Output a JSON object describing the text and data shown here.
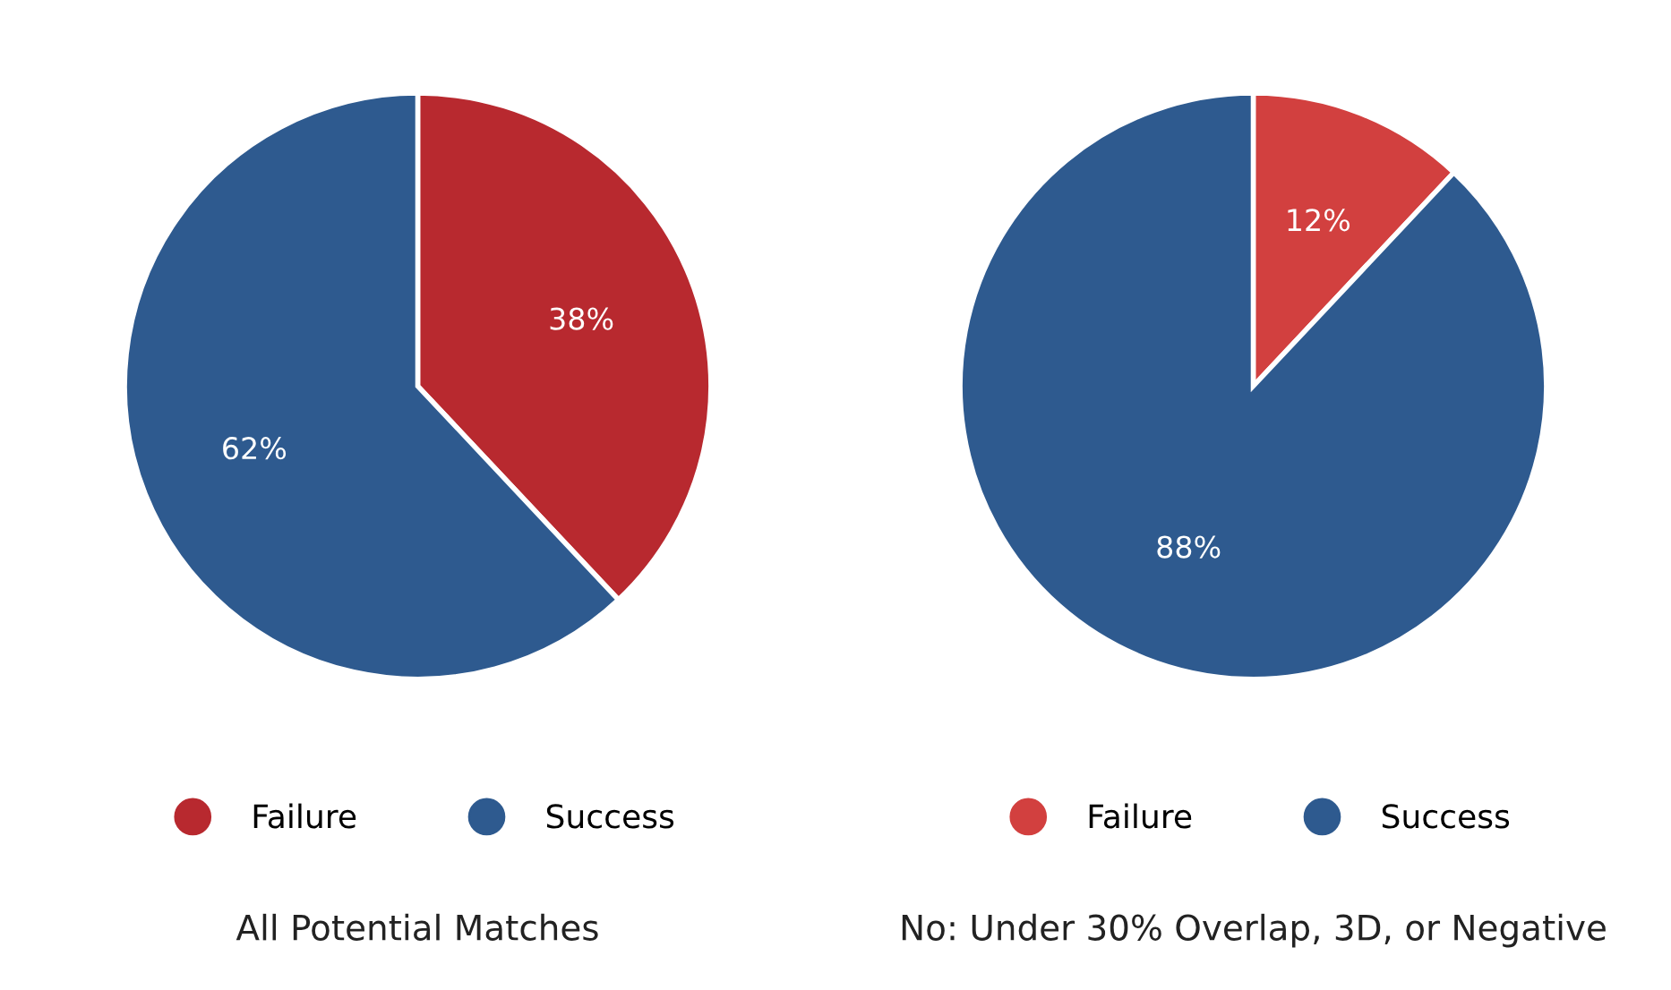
{
  "chart_data": [
    {
      "type": "pie",
      "title": "All Potential Matches",
      "categories": [
        "Failure",
        "Success"
      ],
      "values": [
        38,
        62
      ],
      "colors": [
        "#b8292f",
        "#2e5a8f"
      ],
      "value_labels": [
        "38%",
        "62%"
      ],
      "legend": "bottom"
    },
    {
      "type": "pie",
      "title": "No: Under 30% Overlap, 3D, or Negative",
      "categories": [
        "Failure",
        "Success"
      ],
      "values": [
        12,
        88
      ],
      "colors": [
        "#d2403f",
        "#2e5a8f"
      ],
      "value_labels": [
        "12%",
        "88%"
      ],
      "legend": "bottom"
    }
  ]
}
